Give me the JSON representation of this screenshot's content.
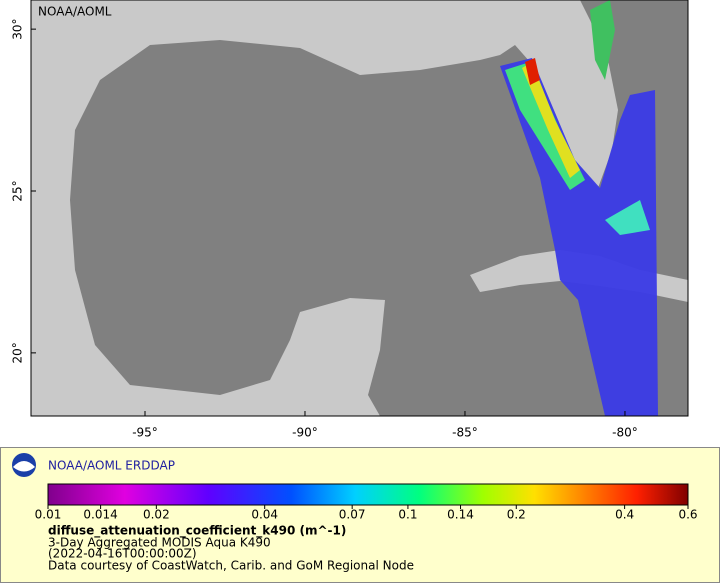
{
  "chart_data": {
    "type": "map",
    "title": "NOAA/AOML",
    "xlim": [
      -98.5625,
      -78.03
    ],
    "ylim": [
      18.05,
      30.9
    ],
    "xticks": [
      {
        "value": -95,
        "label": "-95°"
      },
      {
        "value": -90,
        "label": "-90°"
      },
      {
        "value": -85,
        "label": "-85°"
      },
      {
        "value": -80,
        "label": "-80°"
      }
    ],
    "yticks": [
      {
        "value": 20,
        "label": "20°"
      },
      {
        "value": 25,
        "label": "25°"
      },
      {
        "value": 30,
        "label": "30°"
      }
    ],
    "legend": {
      "title": "NOAA/AOML ERDDAP",
      "colorbar": {
        "scale": "log",
        "lim": [
          0.01,
          0.6
        ],
        "ticks": [
          0.01,
          0.014,
          0.02,
          0.04,
          0.07,
          0.1,
          0.14,
          0.2,
          0.4,
          0.6
        ]
      },
      "variable": "diffuse_attenuation_coefficient_k490 (m^-1)",
      "lines": [
        "3-Day Aggregated MODIS Aqua K490",
        "(2022-04-16T00:00:00Z)",
        "Data courtesy of CoastWatch, Carib. and GoM Regional Node"
      ]
    }
  }
}
